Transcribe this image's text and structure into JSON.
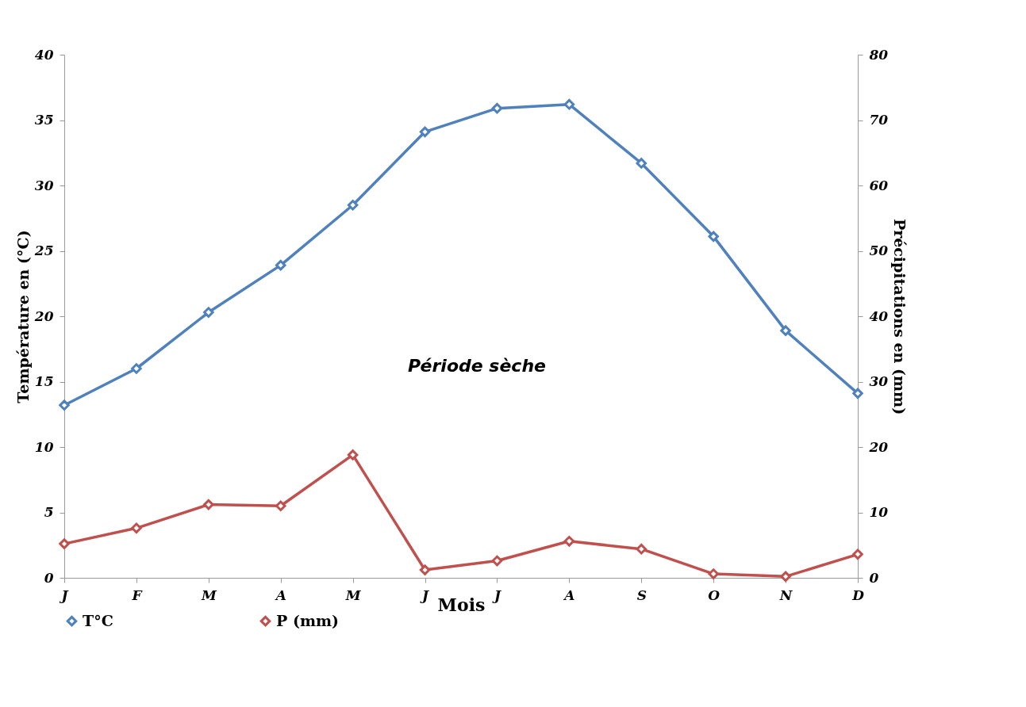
{
  "chart_data": {
    "type": "line",
    "xlabel": "Mois",
    "ylabel": "Température en (°C)",
    "y2label": "Précipitations en (mm)",
    "categories": [
      "J",
      "F",
      "M",
      "A",
      "M",
      "J",
      "J",
      "A",
      "S",
      "O",
      "N",
      "D"
    ],
    "series": [
      {
        "name": "T°C",
        "color": "#4f81bd",
        "values": [
          13.2,
          16.0,
          20.3,
          23.9,
          28.5,
          34.1,
          35.9,
          36.2,
          31.7,
          26.1,
          18.9,
          14.1
        ]
      },
      {
        "name": "P (mm)",
        "color": "#c0504d",
        "axis": "y2",
        "values": [
          5.2,
          7.6,
          11.2,
          11.0,
          18.8,
          1.2,
          2.6,
          5.6,
          4.4,
          0.6,
          0.2,
          3.6
        ]
      }
    ],
    "ylim": [
      0,
      40
    ],
    "yticks": [
      0,
      5,
      10,
      15,
      20,
      25,
      30,
      35,
      40
    ],
    "y2lim": [
      0,
      80
    ],
    "y2ticks": [
      0,
      10,
      20,
      30,
      40,
      50,
      60,
      70,
      80
    ],
    "annotations": [
      "Période sèche"
    ],
    "marker": "diamond",
    "legend": "bottom",
    "grid": false
  }
}
